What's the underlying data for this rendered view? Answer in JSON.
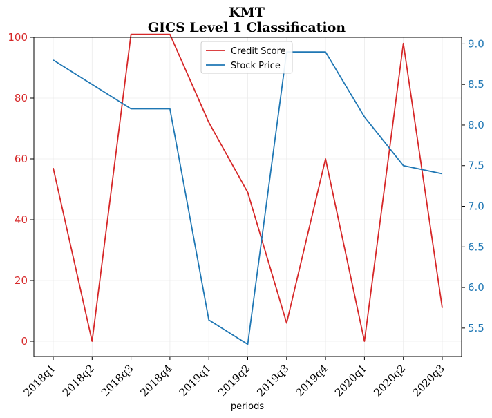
{
  "chart_data": {
    "type": "line",
    "title": "KMT",
    "subtitle": "GICS Level 1 Classification",
    "xlabel": "periods",
    "ylabel_left": "",
    "ylabel_right": "",
    "categories": [
      "2018q1",
      "2018q2",
      "2018q3",
      "2018q4",
      "2019q1",
      "2019q2",
      "2019q3",
      "2019q4",
      "2020q1",
      "2020q2",
      "2020q3"
    ],
    "series": [
      {
        "name": "Credit Score",
        "axis": "left",
        "color": "#d62728",
        "values": [
          57,
          0,
          101,
          101,
          72,
          49,
          6,
          60,
          0,
          98,
          11
        ]
      },
      {
        "name": "Stock Price",
        "axis": "right",
        "color": "#1f77b4",
        "values": [
          8.8,
          8.5,
          8.2,
          8.2,
          5.6,
          5.3,
          8.9,
          8.9,
          8.1,
          7.5,
          7.4
        ]
      }
    ],
    "ylim_left": [
      -5,
      100
    ],
    "yticks_left": [
      0,
      20,
      40,
      60,
      80,
      100
    ],
    "ylim_right": [
      5.15,
      9.08
    ],
    "yticks_right": [
      5.5,
      6.0,
      6.5,
      7.0,
      7.5,
      8.0,
      8.5,
      9.0
    ],
    "left_tick_color": "#d62728",
    "right_tick_color": "#1f77b4",
    "title_color": "#2f4f4f",
    "grid": true,
    "legend_position": "upper-center"
  }
}
